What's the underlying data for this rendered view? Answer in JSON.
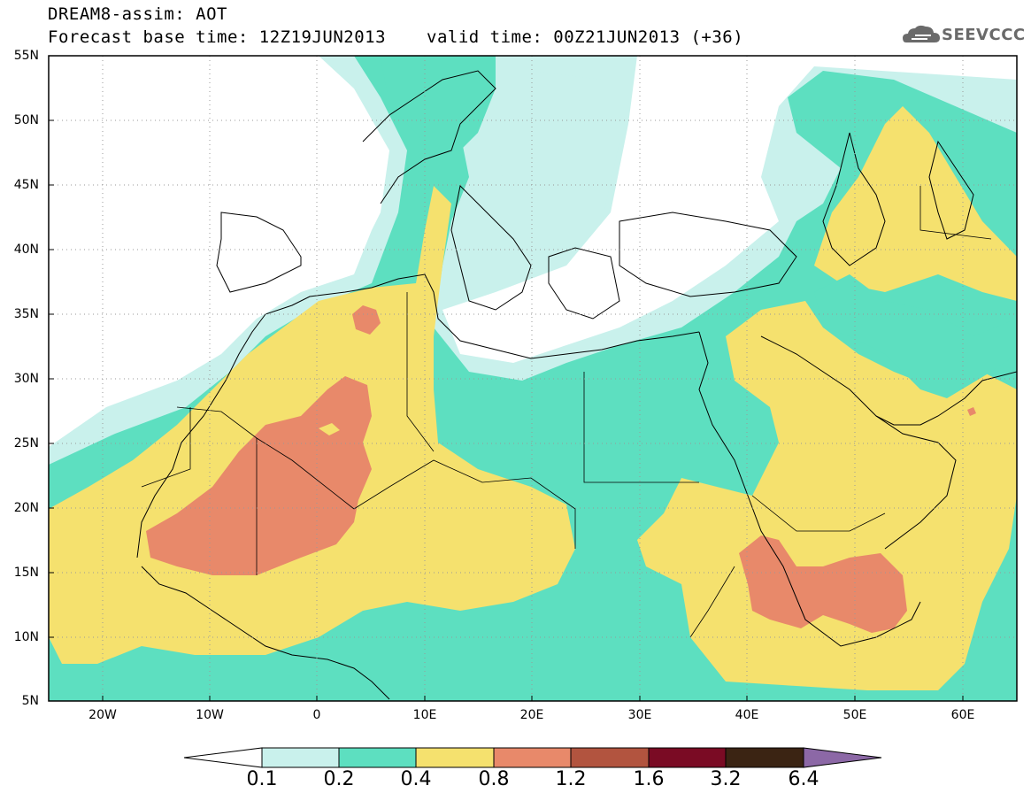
{
  "header": {
    "title": "DREAM8-assim: AOT",
    "base_time": "Forecast base time: 12Z19JUN2013",
    "valid_time": "valid time: 00Z21JUN2013 (+36)",
    "logo_text": "SEEVCCC"
  },
  "map": {
    "variable": "AOT",
    "projection": "lat-lon",
    "lon_range": [
      -25,
      65
    ],
    "lat_range": [
      5,
      55
    ],
    "grid": true,
    "lat_labels": [
      "55N",
      "50N",
      "45N",
      "40N",
      "35N",
      "30N",
      "25N",
      "20N",
      "15N",
      "10N",
      "5N"
    ],
    "lon_labels": [
      "20W",
      "10W",
      "0",
      "10E",
      "20E",
      "30E",
      "40E",
      "50E",
      "60E"
    ]
  },
  "colorbar": {
    "labels": [
      "0.1",
      "0.2",
      "0.4",
      "0.8",
      "1.2",
      "1.6",
      "3.2",
      "6.4"
    ],
    "colors": [
      "#c9f1ec",
      "#5ddfc0",
      "#f5e16e",
      "#e8896a",
      "#b2543f",
      "#7a0b24",
      "#3b2413",
      "#8c68a6"
    ]
  },
  "icons": {
    "logo": "cloud-icon"
  }
}
